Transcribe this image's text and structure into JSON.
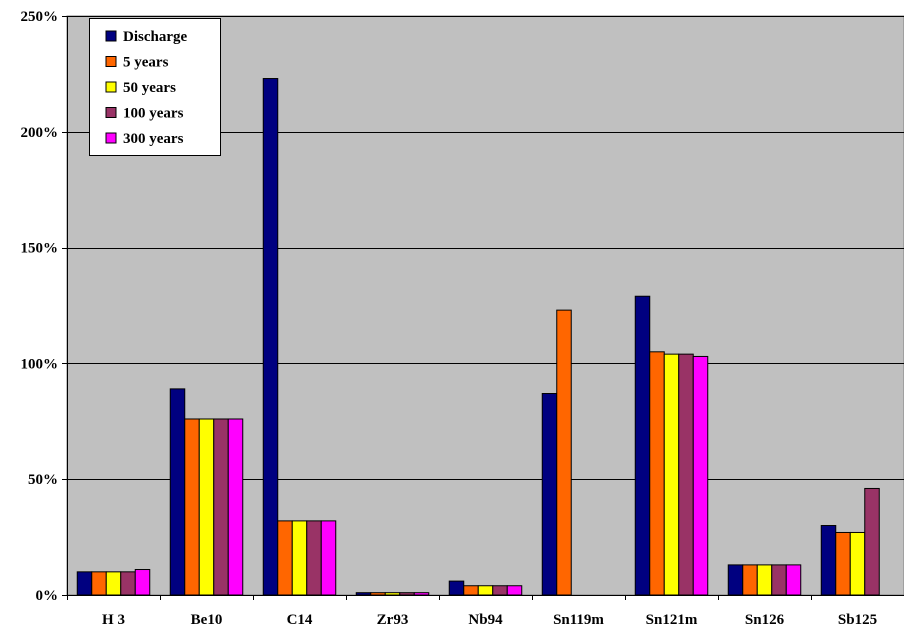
{
  "chart_data": {
    "type": "bar",
    "title": "",
    "xlabel": "",
    "ylabel": "",
    "categories": [
      "H 3",
      "Be10",
      "C14",
      "Zr93",
      "Nb94",
      "Sn119m",
      "Sn121m",
      "Sn126",
      "Sb125"
    ],
    "y_ticks": [
      "0%",
      "50%",
      "100%",
      "150%",
      "200%",
      "250%"
    ],
    "y_tick_values": [
      0,
      50,
      100,
      150,
      200,
      250
    ],
    "ylim": [
      0,
      250
    ],
    "grid": true,
    "legend_position": "top-left",
    "series": [
      {
        "name": "Discharge",
        "color": "#000080",
        "values": [
          10,
          89,
          223,
          1,
          6,
          87,
          129,
          13,
          30
        ]
      },
      {
        "name": "5 years",
        "color": "#FF6600",
        "values": [
          10,
          76,
          32,
          1,
          4,
          123,
          105,
          13,
          27
        ]
      },
      {
        "name": "50 years",
        "color": "#FFFF00",
        "values": [
          10,
          76,
          32,
          1,
          4,
          0,
          104,
          13,
          27
        ]
      },
      {
        "name": "100 years",
        "color": "#993366",
        "values": [
          10,
          76,
          32,
          1,
          4,
          0,
          104,
          13,
          46
        ]
      },
      {
        "name": "300 years",
        "color": "#FF00FF",
        "values": [
          11,
          76,
          32,
          1,
          4,
          0,
          103,
          13,
          null
        ]
      }
    ],
    "plot_background": "#C0C0C0"
  }
}
